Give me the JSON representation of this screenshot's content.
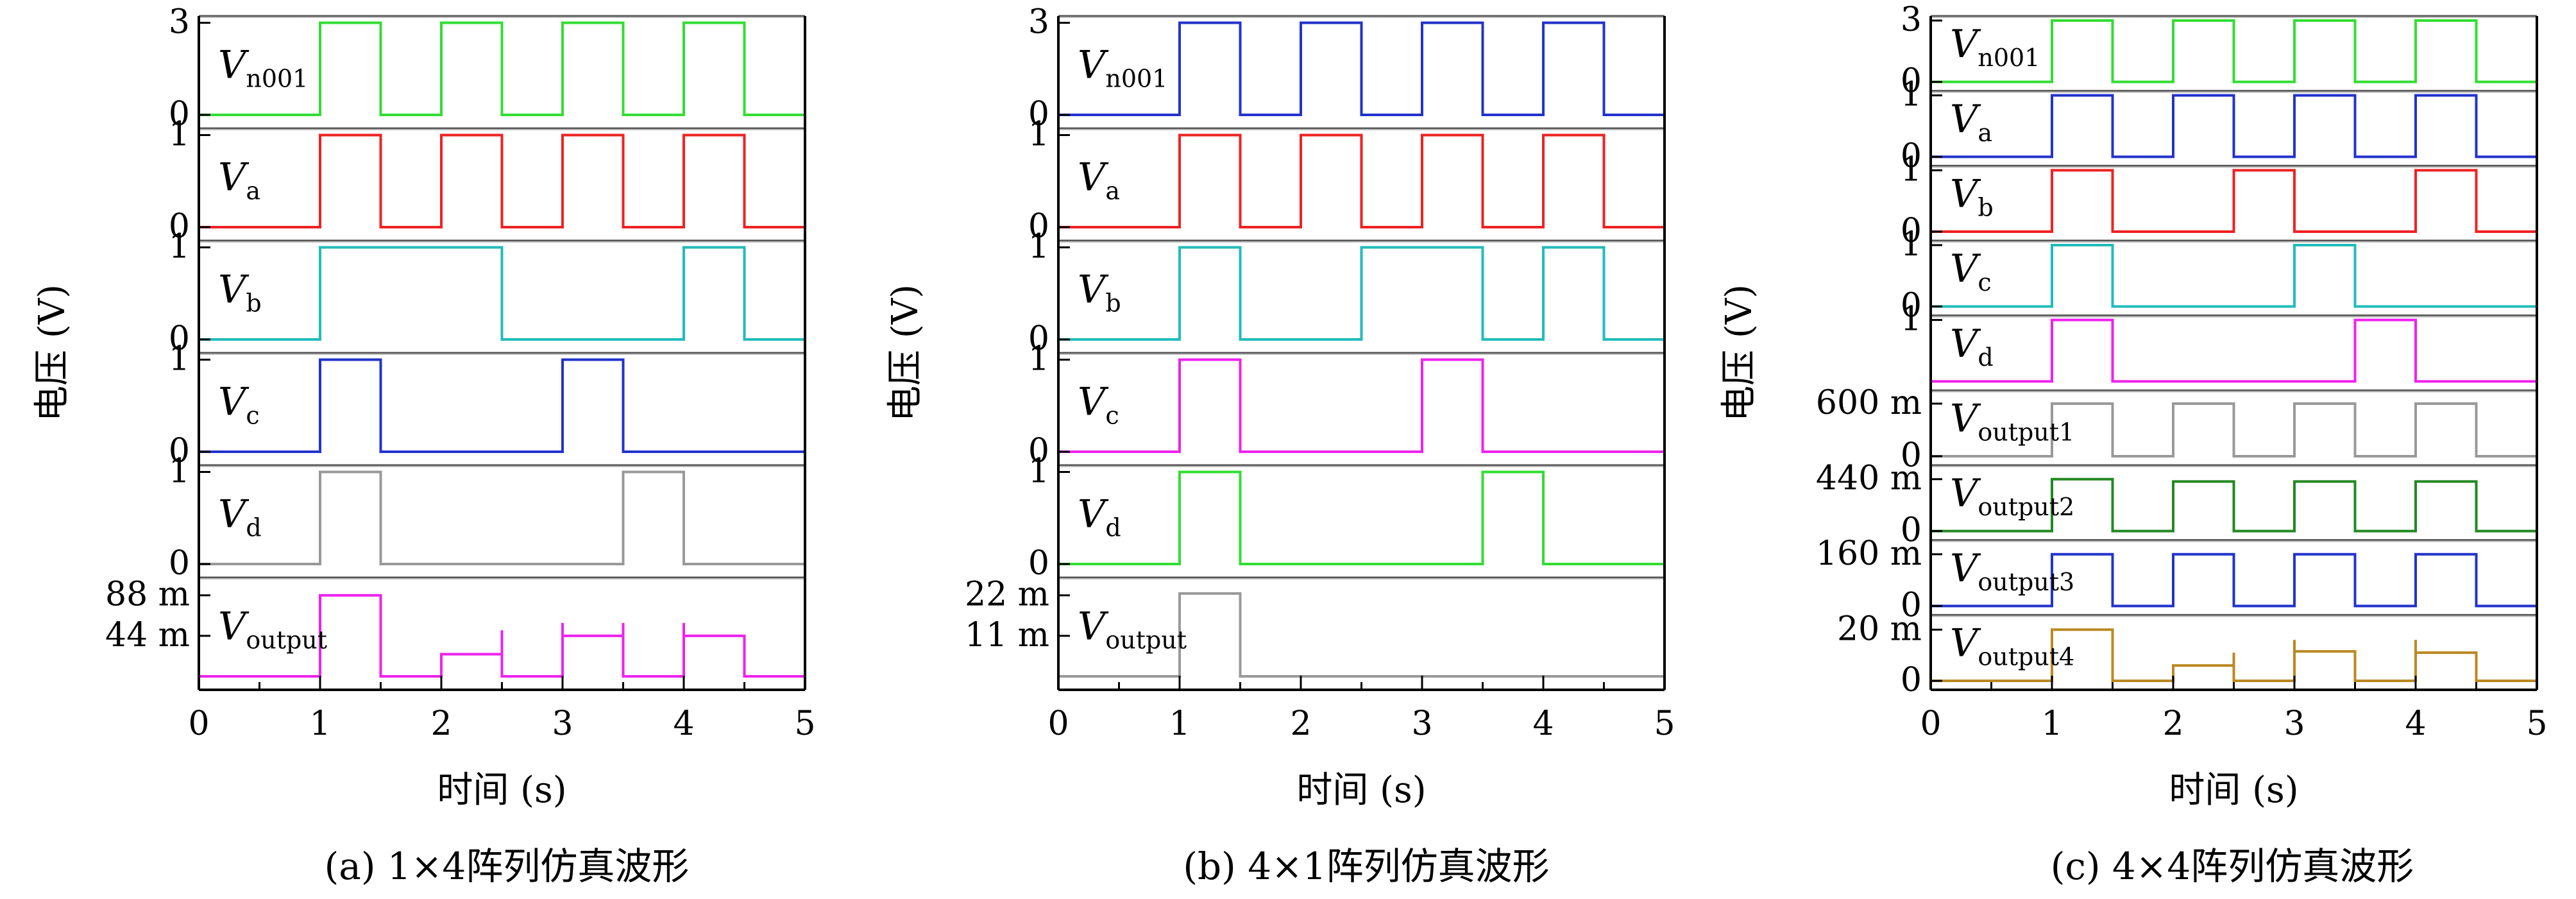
{
  "chart_data": [
    {
      "type": "line",
      "caption": "(a) 1×4阵列仿真波形",
      "xlabel": "时间 (s)",
      "ylabel": "电压 (V)",
      "xlim": [
        0,
        5
      ],
      "xticks": [
        "0",
        "1",
        "2",
        "3",
        "4",
        "5"
      ],
      "series": [
        {
          "label": "V",
          "sub": "n001",
          "color": "#33dd33",
          "ymin": 0,
          "ymax": 3,
          "ticks": [
            {
              "v": 3,
              "t": "3"
            },
            {
              "v": 0,
              "t": "0"
            }
          ],
          "segs": [
            [
              0,
              0
            ],
            [
              1,
              3
            ],
            [
              1.5,
              3
            ],
            [
              1.5,
              3
            ],
            [
              2,
              3
            ],
            [
              2.5,
              3
            ],
            [
              3,
              3
            ],
            [
              3.5,
              3
            ],
            [
              4,
              3
            ],
            [
              4.5,
              0
            ]
          ],
          "pulses": [
            [
              1,
              1.5,
              3
            ],
            [
              2,
              2.5,
              3
            ],
            [
              3,
              3.5,
              3
            ],
            [
              4,
              4.5,
              3
            ]
          ]
        },
        {
          "label": "V",
          "sub": "a",
          "color": "#ee2222",
          "ymin": 0,
          "ymax": 1,
          "ticks": [
            {
              "v": 1,
              "t": "1"
            },
            {
              "v": 0,
              "t": "0"
            }
          ],
          "pulses": [
            [
              1,
              1.5,
              1
            ],
            [
              2,
              2.5,
              1
            ],
            [
              3,
              3.5,
              1
            ],
            [
              4,
              4.5,
              1
            ]
          ]
        },
        {
          "label": "V",
          "sub": "b",
          "color": "#22bbbb",
          "ymin": 0,
          "ymax": 1,
          "ticks": [
            {
              "v": 1,
              "t": "1"
            },
            {
              "v": 0,
              "t": "0"
            }
          ],
          "pulses": [
            [
              1,
              2.5,
              1
            ],
            [
              4,
              4.5,
              1
            ]
          ]
        },
        {
          "label": "V",
          "sub": "c",
          "color": "#2233cc",
          "ymin": 0,
          "ymax": 1,
          "ticks": [
            {
              "v": 1,
              "t": "1"
            },
            {
              "v": 0,
              "t": "0"
            }
          ],
          "pulses": [
            [
              1,
              1.5,
              1
            ],
            [
              3,
              3.5,
              1
            ]
          ]
        },
        {
          "label": "V",
          "sub": "d",
          "color": "#999999",
          "ymin": 0,
          "ymax": 1,
          "ticks": [
            {
              "v": 1,
              "t": "1"
            },
            {
              "v": 0,
              "t": "0"
            }
          ],
          "pulses": [
            [
              1,
              1.5,
              1
            ],
            [
              3.5,
              4,
              1
            ]
          ]
        },
        {
          "label": "V",
          "sub": "output",
          "color": "#ee22ee",
          "ymin": 0,
          "ymax": 0.1,
          "ticks": [
            {
              "v": 0.088,
              "t": "88 m"
            },
            {
              "v": 0.044,
              "t": "44 m"
            }
          ],
          "pulses": [
            [
              1,
              1.5,
              0.088
            ],
            [
              2,
              2.5,
              0.024
            ],
            [
              3,
              3.5,
              0.044
            ],
            [
              4,
              4.5,
              0.044
            ]
          ],
          "spikes": [
            [
              2.5,
              0.05
            ],
            [
              3,
              0.058
            ],
            [
              3.5,
              0.058
            ],
            [
              4,
              0.058
            ]
          ]
        }
      ]
    },
    {
      "type": "line",
      "caption": "(b) 4×1阵列仿真波形",
      "xlabel": "时间 (s)",
      "ylabel": "电压 (V)",
      "xlim": [
        0,
        5
      ],
      "xticks": [
        "0",
        "1",
        "2",
        "3",
        "4",
        "5"
      ],
      "series": [
        {
          "label": "V",
          "sub": "n001",
          "color": "#2233cc",
          "ymin": 0,
          "ymax": 3,
          "ticks": [
            {
              "v": 3,
              "t": "3"
            },
            {
              "v": 0,
              "t": "0"
            }
          ],
          "pulses": [
            [
              1,
              1.5,
              3
            ],
            [
              2,
              2.5,
              3
            ],
            [
              3,
              3.5,
              3
            ],
            [
              4,
              4.5,
              3
            ]
          ]
        },
        {
          "label": "V",
          "sub": "a",
          "color": "#ee2222",
          "ymin": 0,
          "ymax": 1,
          "ticks": [
            {
              "v": 1,
              "t": "1"
            },
            {
              "v": 0,
              "t": "0"
            }
          ],
          "pulses": [
            [
              1,
              1.5,
              1
            ],
            [
              2,
              2.5,
              1
            ],
            [
              3,
              3.5,
              1
            ],
            [
              4,
              4.5,
              1
            ]
          ]
        },
        {
          "label": "V",
          "sub": "b",
          "color": "#22bbbb",
          "ymin": 0,
          "ymax": 1,
          "ticks": [
            {
              "v": 1,
              "t": "1"
            },
            {
              "v": 0,
              "t": "0"
            }
          ],
          "pulses": [
            [
              1,
              1.5,
              1
            ],
            [
              2.5,
              3.5,
              1
            ],
            [
              4,
              4.5,
              1
            ]
          ]
        },
        {
          "label": "V",
          "sub": "c",
          "color": "#ee22ee",
          "ymin": 0,
          "ymax": 1,
          "ticks": [
            {
              "v": 1,
              "t": "1"
            },
            {
              "v": 0,
              "t": "0"
            }
          ],
          "pulses": [
            [
              1,
              1.5,
              1
            ],
            [
              3,
              3.5,
              1
            ]
          ]
        },
        {
          "label": "V",
          "sub": "d",
          "color": "#33dd33",
          "ymin": 0,
          "ymax": 1,
          "ticks": [
            {
              "v": 1,
              "t": "1"
            },
            {
              "v": 0,
              "t": "0"
            }
          ],
          "pulses": [
            [
              1,
              1.5,
              1
            ],
            [
              3.5,
              4,
              1
            ]
          ]
        },
        {
          "label": "V",
          "sub": "output",
          "color": "#999999",
          "ymin": 0,
          "ymax": 0.025,
          "ticks": [
            {
              "v": 0.022,
              "t": "22 m"
            },
            {
              "v": 0.011,
              "t": "11 m"
            }
          ],
          "pulses": [
            [
              1,
              1.5,
              0.0225
            ]
          ]
        }
      ]
    },
    {
      "type": "line",
      "caption": "(c) 4×4阵列仿真波形",
      "xlabel": "时间 (s)",
      "ylabel": "电压 (V)",
      "xlim": [
        0,
        5
      ],
      "xticks": [
        "0",
        "1",
        "2",
        "3",
        "4",
        "5"
      ],
      "series": [
        {
          "label": "V",
          "sub": "n001",
          "color": "#33dd33",
          "ymin": 0,
          "ymax": 3,
          "ticks": [
            {
              "v": 3,
              "t": "3"
            },
            {
              "v": 0,
              "t": "0"
            }
          ],
          "pulses": [
            [
              1,
              1.5,
              3
            ],
            [
              2,
              2.5,
              3
            ],
            [
              3,
              3.5,
              3
            ],
            [
              4,
              4.5,
              3
            ]
          ]
        },
        {
          "label": "V",
          "sub": "a",
          "color": "#2233cc",
          "ymin": 0,
          "ymax": 1,
          "ticks": [
            {
              "v": 1,
              "t": "1"
            },
            {
              "v": 0,
              "t": "0"
            }
          ],
          "pulses": [
            [
              1,
              1.5,
              1
            ],
            [
              2,
              2.5,
              1
            ],
            [
              3,
              3.5,
              1
            ],
            [
              4,
              4.5,
              1
            ]
          ]
        },
        {
          "label": "V",
          "sub": "b",
          "color": "#ee2222",
          "ymin": 0,
          "ymax": 1,
          "ticks": [
            {
              "v": 1,
              "t": "1"
            },
            {
              "v": 0,
              "t": "0"
            }
          ],
          "pulses": [
            [
              1,
              1.5,
              1
            ],
            [
              2.5,
              3,
              1
            ],
            [
              4,
              4.5,
              1
            ]
          ]
        },
        {
          "label": "V",
          "sub": "c",
          "color": "#22bbbb",
          "ymin": 0,
          "ymax": 1,
          "ticks": [
            {
              "v": 1,
              "t": "1"
            },
            {
              "v": 0,
              "t": "0"
            }
          ],
          "pulses": [
            [
              1,
              1.5,
              1
            ],
            [
              3,
              3.5,
              1
            ]
          ]
        },
        {
          "label": "V",
          "sub": "d",
          "color": "#ee22ee",
          "ymin": 0,
          "ymax": 1,
          "ticks": [
            {
              "v": 1,
              "t": "1"
            }
          ],
          "pulses": [
            [
              1,
              1.5,
              1
            ],
            [
              3.5,
              4,
              1
            ]
          ]
        },
        {
          "label": "V",
          "sub": "output1",
          "color": "#999999",
          "ymin": 0,
          "ymax": 0.7,
          "ticks": [
            {
              "v": 0.6,
              "t": "600 m"
            },
            {
              "v": 0,
              "t": "0"
            }
          ],
          "pulses": [
            [
              1,
              1.5,
              0.6
            ],
            [
              2,
              2.5,
              0.6
            ],
            [
              3,
              3.5,
              0.6
            ],
            [
              4,
              4.5,
              0.6
            ]
          ]
        },
        {
          "label": "V",
          "sub": "output2",
          "color": "#228822",
          "ymin": 0,
          "ymax": 0.52,
          "ticks": [
            {
              "v": 0.44,
              "t": "440 m"
            },
            {
              "v": 0,
              "t": "0"
            }
          ],
          "pulses": [
            [
              1,
              1.5,
              0.44
            ],
            [
              2,
              2.5,
              0.42
            ],
            [
              3,
              3.5,
              0.42
            ],
            [
              4,
              4.5,
              0.42
            ]
          ]
        },
        {
          "label": "V",
          "sub": "output3",
          "color": "#2233cc",
          "ymin": 0,
          "ymax": 0.19,
          "ticks": [
            {
              "v": 0.16,
              "t": "160 m"
            },
            {
              "v": 0,
              "t": "0"
            }
          ],
          "pulses": [
            [
              1,
              1.5,
              0.16
            ],
            [
              2,
              2.5,
              0.16
            ],
            [
              3,
              3.5,
              0.16
            ],
            [
              4,
              4.5,
              0.16
            ]
          ]
        },
        {
          "label": "V",
          "sub": "output4",
          "color": "#bb8822",
          "ymin": 0,
          "ymax": 0.024,
          "ticks": [
            {
              "v": 0.02,
              "t": "20 m"
            },
            {
              "v": 0,
              "t": "0"
            }
          ],
          "pulses": [
            [
              1,
              1.5,
              0.02
            ],
            [
              2,
              2.5,
              0.006
            ],
            [
              3,
              3.5,
              0.0115
            ],
            [
              4,
              4.5,
              0.011
            ]
          ],
          "spikes": [
            [
              2.5,
              0.011
            ],
            [
              3,
              0.016
            ],
            [
              4,
              0.016
            ]
          ]
        }
      ]
    }
  ]
}
